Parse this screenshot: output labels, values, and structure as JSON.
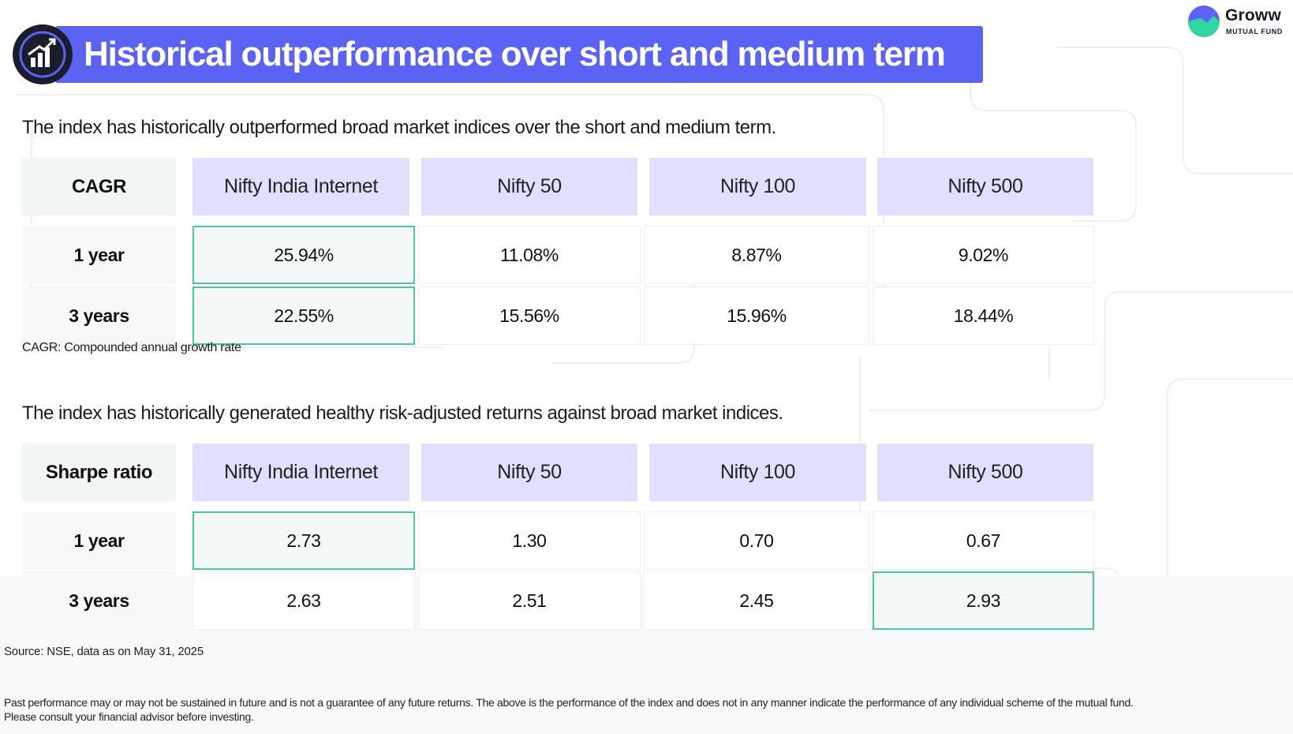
{
  "header": {
    "title": "Historical outperformance over short and medium term",
    "title_icon": "chart-growth-icon",
    "accent_color": "#5b63f5"
  },
  "logo": {
    "name": "Groww",
    "subtitle": "MUTUAL FUND",
    "icon": "groww-logo-icon"
  },
  "cagr_section": {
    "subtitle": "The index has historically outperformed broad market indices over the short and medium term.",
    "table": {
      "corner": "CAGR",
      "columns": [
        "Nifty India Internet",
        "Nifty 50",
        "Nifty 100",
        "Nifty 500"
      ],
      "rows": [
        {
          "label": "1 year",
          "values": [
            "25.94%",
            "11.08%",
            "8.87%",
            "9.02%"
          ]
        },
        {
          "label": "3 years",
          "values": [
            "22.55%",
            "15.56%",
            "15.96%",
            "18.44%"
          ]
        }
      ]
    },
    "note": "CAGR: Compounded annual growth rate"
  },
  "sharpe_section": {
    "subtitle": "The index has historically generated healthy risk-adjusted returns against broad market indices.",
    "table": {
      "corner": "Sharpe ratio",
      "columns": [
        "Nifty India Internet",
        "Nifty 50",
        "Nifty 100",
        "Nifty 500"
      ],
      "rows": [
        {
          "label": "1 year",
          "values": [
            "2.73",
            "1.30",
            "0.70",
            "0.67"
          ]
        },
        {
          "label": "3 years",
          "values": [
            "2.63",
            "2.51",
            "2.45",
            "2.93"
          ]
        }
      ]
    }
  },
  "footer": {
    "source": "Source: NSE, data as on May 31, 2025",
    "disclaimer_line1": "Past performance may or may not be sustained in future and is not a guarantee of any future returns. The above is the performance of the index and does not in any manner indicate the performance of any individual scheme of the mutual fund.",
    "disclaimer_line2": "Please consult your financial advisor before investing."
  },
  "colors": {
    "highlight_border": "#49c6a3",
    "header_cell": "#dfe0fd",
    "corner_cell": "#f1f6f3"
  }
}
